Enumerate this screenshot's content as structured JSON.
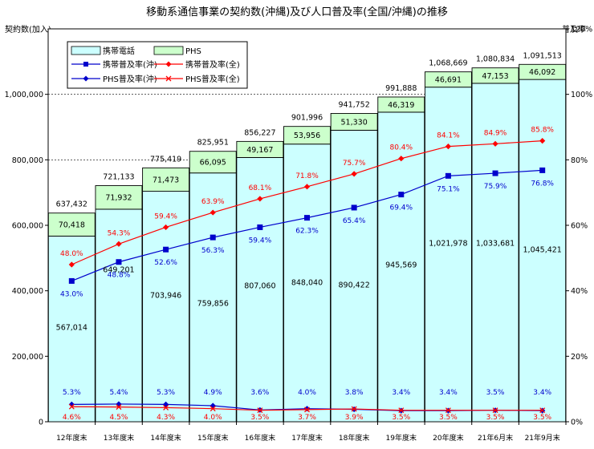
{
  "chart_data": {
    "type": "bar",
    "title": "移動系通信事業の契約数(沖縄)及び人口普及率(全国/沖縄)の推移",
    "ylabel": "契約数(加入)",
    "y2label": "普及率",
    "ylim": [
      0,
      1200000
    ],
    "y2lim": [
      0,
      120
    ],
    "yticks": [
      "0",
      "200,000",
      "400,000",
      "600,000",
      "800,000",
      "1,000,000"
    ],
    "y2ticks": [
      "0%",
      "20%",
      "40%",
      "60%",
      "80%",
      "100%",
      "120%"
    ],
    "categories": [
      "12年度末",
      "13年度末",
      "14年度末",
      "15年度末",
      "16年度末",
      "17年度末",
      "18年度末",
      "19年度末",
      "20年度末",
      "21年6月末",
      "21年9月末"
    ],
    "legend": {
      "keitai": "携帯電話",
      "phs": "PHS",
      "keitai_oki": "携帯普及率(沖)",
      "keitai_zen": "携帯普及率(全)",
      "phs_oki": "PHS普及率(沖)",
      "phs_zen": "PHS普及率(全)"
    },
    "keitai": {
      "values": [
        567014,
        649201,
        703946,
        759856,
        807060,
        848040,
        890422,
        945569,
        1021978,
        1033681,
        1045421
      ],
      "labels": [
        "567,014",
        "649,201",
        "703,946",
        "759,856",
        "807,060",
        "848,040",
        "890,422",
        "945,569",
        "1,021,978",
        "1,033,681",
        "1,045,421"
      ],
      "color": "#ccffff"
    },
    "phs": {
      "values": [
        70418,
        71932,
        71473,
        66095,
        49167,
        53956,
        51330,
        46319,
        46691,
        47153,
        46092
      ],
      "labels": [
        "70,418",
        "71,932",
        "71,473",
        "66,095",
        "49,167",
        "53,956",
        "51,330",
        "46,319",
        "46,691",
        "47,153",
        "46,092"
      ],
      "color": "#ccffcc"
    },
    "totals": [
      "637,432",
      "721,133",
      "775,419",
      "825,951",
      "856,227",
      "901,996",
      "941,752",
      "991,888",
      "1,068,669",
      "1,080,834",
      "1,091,513"
    ],
    "keitai_oki_rate": {
      "values": [
        43.0,
        48.8,
        52.6,
        56.3,
        59.4,
        62.3,
        65.4,
        69.4,
        75.1,
        75.9,
        76.8
      ],
      "labels": [
        "43.0%",
        "48.8%",
        "52.6%",
        "56.3%",
        "59.4%",
        "62.3%",
        "65.4%",
        "69.4%",
        "75.1%",
        "75.9%",
        "76.8%"
      ],
      "color": "#0000cc"
    },
    "keitai_zen_rate": {
      "values": [
        48.0,
        54.3,
        59.4,
        63.9,
        68.1,
        71.8,
        75.7,
        80.4,
        84.1,
        84.9,
        85.8
      ],
      "labels": [
        "48.0%",
        "54.3%",
        "59.4%",
        "63.9%",
        "68.1%",
        "71.8%",
        "75.7%",
        "80.4%",
        "84.1%",
        "84.9%",
        "85.8%"
      ],
      "color": "#ff0000"
    },
    "phs_oki_rate": {
      "values": [
        5.3,
        5.4,
        5.3,
        4.9,
        3.6,
        4.0,
        3.8,
        3.4,
        3.4,
        3.5,
        3.4
      ],
      "labels": [
        "5.3%",
        "5.4%",
        "5.3%",
        "4.9%",
        "3.6%",
        "4.0%",
        "3.8%",
        "3.4%",
        "3.4%",
        "3.5%",
        "3.4%"
      ],
      "color": "#0000cc"
    },
    "phs_zen_rate": {
      "values": [
        4.6,
        4.5,
        4.3,
        4.0,
        3.5,
        3.7,
        3.9,
        3.5,
        3.5,
        3.5,
        3.5
      ],
      "labels": [
        "4.6%",
        "4.5%",
        "4.3%",
        "4.0%",
        "3.5%",
        "3.7%",
        "3.9%",
        "3.5%",
        "3.5%",
        "3.5%",
        "3.5%"
      ],
      "color": "#ff0000"
    }
  }
}
